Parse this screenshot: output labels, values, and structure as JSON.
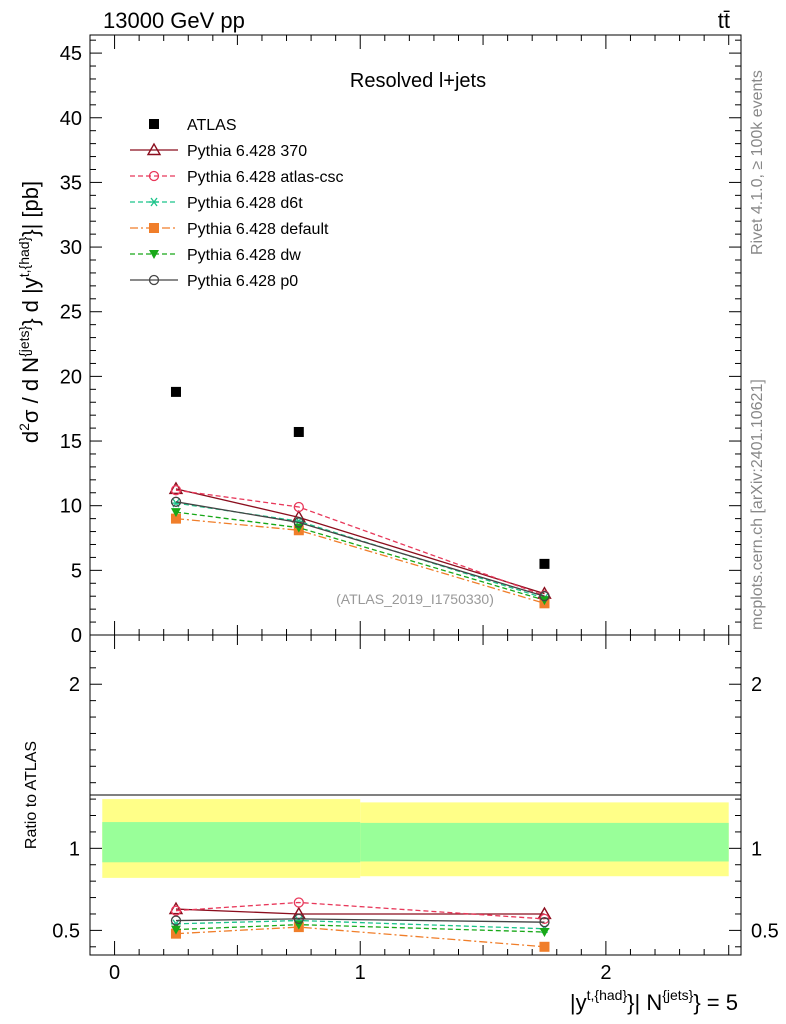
{
  "header": {
    "left": "13000 GeV pp",
    "right": "tt̄"
  },
  "side_text": {
    "rivet": "Rivet 4.1.0, ≥ 100k events",
    "mcplots": "mcplots.cern.ch [arXiv:2401.10621]"
  },
  "chart_data": [
    {
      "type": "line",
      "title": "Resolved l+jets",
      "watermark": "(ATLAS_2019_I1750330)",
      "ylabel_parts": {
        "d2": "d",
        "sup2": "2",
        "sigma": "σ / d N",
        "supjets": "{jets}",
        "dy": "} d |y",
        "supt": "t,{had}",
        "unit": "}| [pb]"
      },
      "xlim": [
        -0.1,
        2.55
      ],
      "ylim": [
        0,
        46.4
      ],
      "yticks": [
        0,
        5,
        10,
        15,
        20,
        25,
        30,
        35,
        40,
        45
      ],
      "x": [
        0.25,
        0.75,
        1.75
      ],
      "series": [
        {
          "name": "ATLAS",
          "values": [
            18.8,
            15.7,
            5.5
          ],
          "color": "#000000",
          "marker": "square-filled",
          "line": "none"
        },
        {
          "name": "Pythia 6.428 370",
          "values": [
            11.3,
            9.1,
            3.2
          ],
          "color": "#8b0e1e",
          "marker": "triangle-open",
          "line": "solid"
        },
        {
          "name": "Pythia 6.428 atlas-csc",
          "values": [
            11.2,
            9.9,
            3.05
          ],
          "color": "#e8385a",
          "marker": "circle-open",
          "line": "dashed"
        },
        {
          "name": "Pythia 6.428 d6t",
          "values": [
            10.2,
            8.8,
            2.85
          ],
          "color": "#1bc48a",
          "marker": "asterisk",
          "line": "dashed"
        },
        {
          "name": "Pythia 6.428 default",
          "values": [
            9.0,
            8.1,
            2.45
          ],
          "color": "#f07e2a",
          "marker": "square-filled",
          "line": "dashdot"
        },
        {
          "name": "Pythia 6.428 dw",
          "values": [
            9.5,
            8.3,
            2.7
          ],
          "color": "#18a818",
          "marker": "triangle-down-filled",
          "line": "dashed"
        },
        {
          "name": "Pythia 6.428 p0",
          "values": [
            10.3,
            8.7,
            3.0
          ],
          "color": "#444444",
          "marker": "circle-open",
          "line": "solid"
        }
      ]
    },
    {
      "type": "line",
      "ylabel": "Ratio to ATLAS",
      "xlabel_parts": {
        "y": "|y",
        "supt": "t,{had}",
        "mid": "}| N",
        "supjets": "{jets}",
        "end": "} = 5"
      },
      "xlim": [
        -0.1,
        2.55
      ],
      "ylim": [
        0.35,
        2.3
      ],
      "yticks_labeled": [
        0.5,
        1,
        2
      ],
      "xticks_labeled": [
        0,
        1,
        2
      ],
      "x": [
        0.25,
        0.75,
        1.75
      ],
      "bands": [
        {
          "name": "2 sigma",
          "color": "#ffff88",
          "bins": [
            [
              -0.05,
              1.0,
              0.82,
              1.3
            ],
            [
              1.0,
              2.5,
              0.83,
              1.28
            ]
          ]
        },
        {
          "name": "1 sigma",
          "color": "#99ff99",
          "bins": [
            [
              -0.05,
              1.0,
              0.915,
              1.16
            ],
            [
              1.0,
              2.5,
              0.92,
              1.155
            ]
          ]
        }
      ],
      "series": [
        {
          "name": "Pythia 6.428 370",
          "values": [
            0.63,
            0.6,
            0.6
          ],
          "color": "#8b0e1e",
          "marker": "triangle-open",
          "line": "solid"
        },
        {
          "name": "Pythia 6.428 atlas-csc",
          "values": [
            0.62,
            0.67,
            0.57
          ],
          "color": "#e8385a",
          "marker": "circle-open",
          "line": "dashed"
        },
        {
          "name": "Pythia 6.428 d6t",
          "values": [
            0.54,
            0.56,
            0.51
          ],
          "color": "#1bc48a",
          "marker": "asterisk",
          "line": "dashed"
        },
        {
          "name": "Pythia 6.428 default",
          "values": [
            0.48,
            0.52,
            0.4
          ],
          "color": "#f07e2a",
          "marker": "square-filled",
          "line": "dashdot"
        },
        {
          "name": "Pythia 6.428 dw",
          "values": [
            0.505,
            0.535,
            0.49
          ],
          "color": "#18a818",
          "marker": "triangle-down-filled",
          "line": "dashed"
        },
        {
          "name": "Pythia 6.428 p0",
          "values": [
            0.56,
            0.57,
            0.55
          ],
          "color": "#444444",
          "marker": "circle-open",
          "line": "solid"
        }
      ]
    }
  ]
}
